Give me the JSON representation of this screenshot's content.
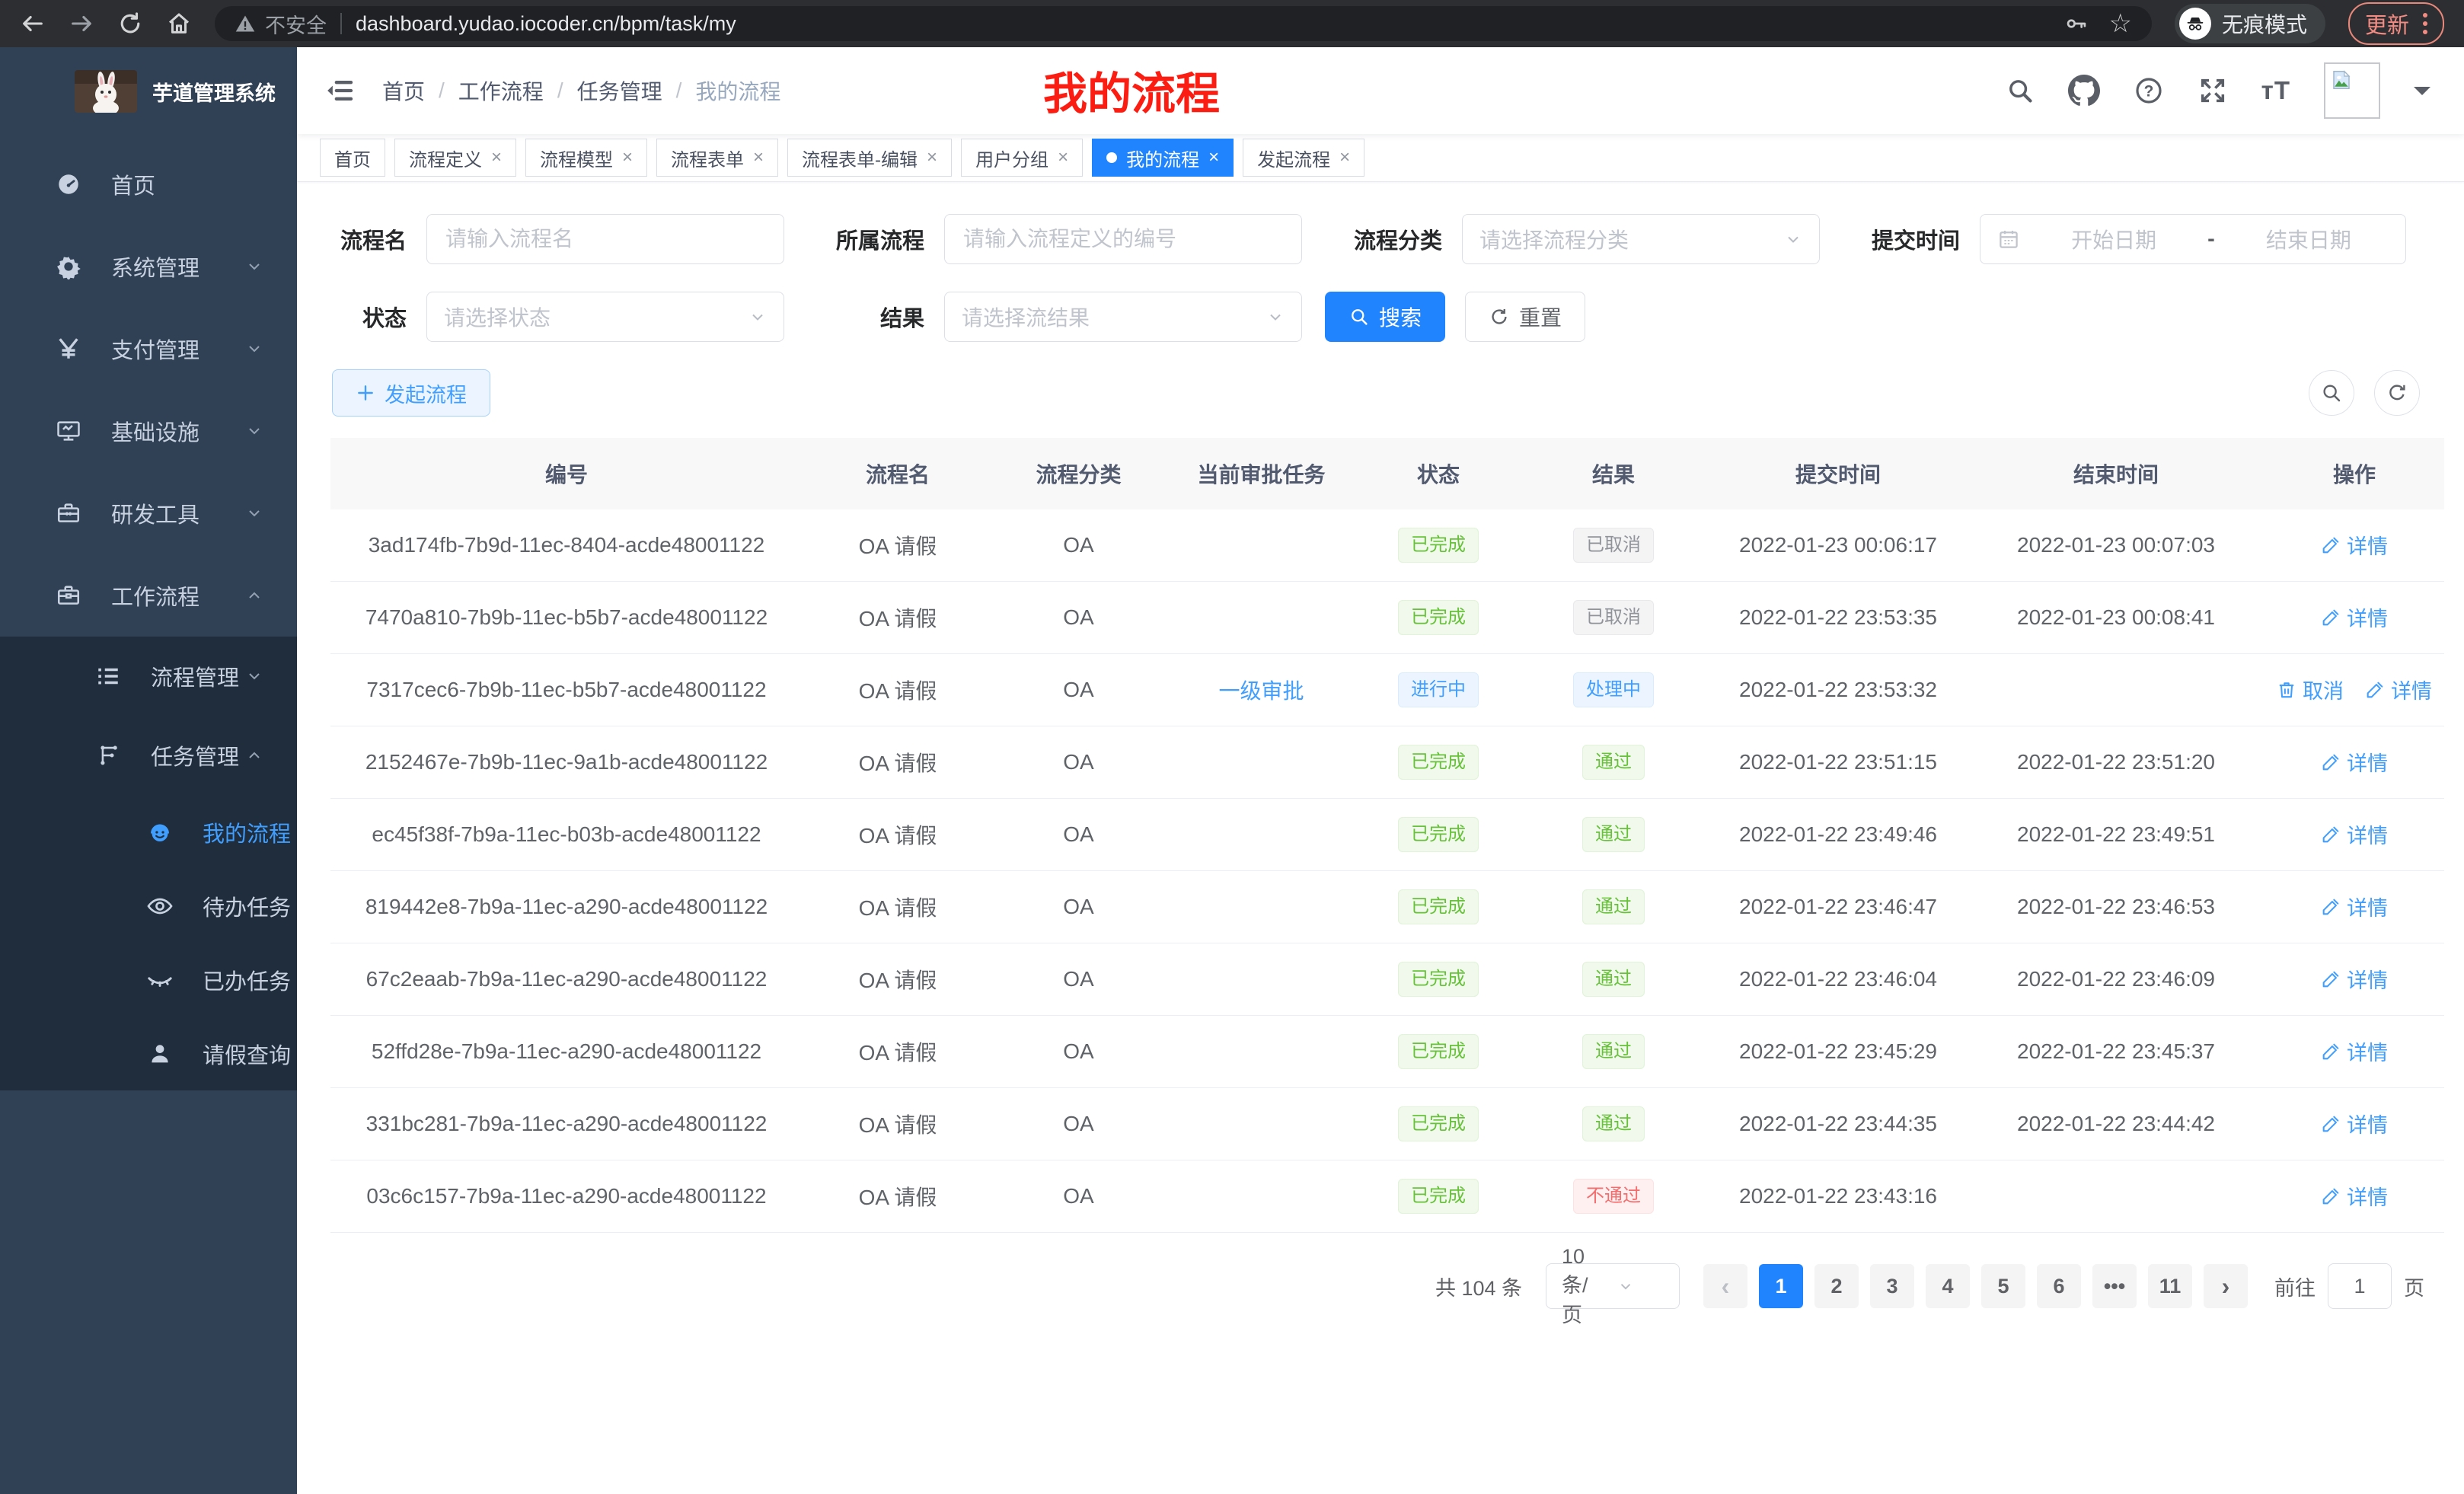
{
  "colors": {
    "primary": "#2084ff",
    "link": "#409eff",
    "success": "#67c23a",
    "info": "#909399",
    "danger": "#f56c6c",
    "annotation": "#fb1d12",
    "sidebar_bg": "#304156",
    "submenu_bg": "#1f2d3d"
  },
  "browser": {
    "security": "不安全",
    "url": "dashboard.yudao.iocoder.cn/bpm/task/my",
    "incognito": "无痕模式",
    "update": "更新"
  },
  "sidebar": {
    "title": "芋道管理系统",
    "items": [
      {
        "label": "首页",
        "icon": "dashboard",
        "level": 1
      },
      {
        "label": "系统管理",
        "icon": "gear",
        "level": 1,
        "chevron": "down"
      },
      {
        "label": "支付管理",
        "icon": "yen",
        "level": 1,
        "chevron": "down"
      },
      {
        "label": "基础设施",
        "icon": "monitor",
        "level": 1,
        "chevron": "down"
      },
      {
        "label": "研发工具",
        "icon": "toolbox",
        "level": 1,
        "chevron": "down"
      },
      {
        "label": "工作流程",
        "icon": "briefcase",
        "level": 1,
        "chevron": "up"
      },
      {
        "label": "流程管理",
        "icon": "list",
        "level": 2,
        "chevron": "down"
      },
      {
        "label": "任务管理",
        "icon": "flow",
        "level": 2,
        "chevron": "up"
      },
      {
        "label": "我的流程",
        "icon": "smiley",
        "level": 3,
        "active": true
      },
      {
        "label": "待办任务",
        "icon": "eye",
        "level": 3
      },
      {
        "label": "已办任务",
        "icon": "eye-off",
        "level": 3
      },
      {
        "label": "请假查询",
        "icon": "user",
        "level": 3
      }
    ]
  },
  "navbar": {
    "breadcrumb": [
      "首页",
      "工作流程",
      "任务管理",
      "我的流程"
    ],
    "annotation": "我的流程"
  },
  "tabs": [
    {
      "label": "首页",
      "closable": false,
      "active": false
    },
    {
      "label": "流程定义",
      "closable": true,
      "active": false
    },
    {
      "label": "流程模型",
      "closable": true,
      "active": false
    },
    {
      "label": "流程表单",
      "closable": true,
      "active": false
    },
    {
      "label": "流程表单-编辑",
      "closable": true,
      "active": false
    },
    {
      "label": "用户分组",
      "closable": true,
      "active": false
    },
    {
      "label": "我的流程",
      "closable": true,
      "active": true
    },
    {
      "label": "发起流程",
      "closable": true,
      "active": false
    }
  ],
  "filters": {
    "name": {
      "label": "流程名",
      "placeholder": "请输入流程名"
    },
    "definition": {
      "label": "所属流程",
      "placeholder": "请输入流程定义的编号"
    },
    "category": {
      "label": "流程分类",
      "placeholder": "请选择流程分类"
    },
    "time": {
      "label": "提交时间",
      "start": "开始日期",
      "separator": "-",
      "end": "结束日期"
    },
    "status": {
      "label": "状态",
      "placeholder": "请选择状态"
    },
    "result": {
      "label": "结果",
      "placeholder": "请选择流结果"
    },
    "search": "搜索",
    "reset": "重置"
  },
  "toolbar": {
    "create": "发起流程"
  },
  "table": {
    "headers": [
      "编号",
      "流程名",
      "流程分类",
      "当前审批任务",
      "状态",
      "结果",
      "提交时间",
      "结束时间",
      "操作"
    ],
    "op_labels": {
      "detail": "详情",
      "cancel": "取消"
    },
    "rows": [
      {
        "id": "3ad174fb-7b9d-11ec-8404-acde48001122",
        "name": "OA 请假",
        "category": "OA",
        "task": "",
        "status": [
          "已完成",
          "success"
        ],
        "result": [
          "已取消",
          "info"
        ],
        "submit": "2022-01-23 00:06:17",
        "end": "2022-01-23 00:07:03",
        "ops": [
          "detail"
        ]
      },
      {
        "id": "7470a810-7b9b-11ec-b5b7-acde48001122",
        "name": "OA 请假",
        "category": "OA",
        "task": "",
        "status": [
          "已完成",
          "success"
        ],
        "result": [
          "已取消",
          "info"
        ],
        "submit": "2022-01-22 23:53:35",
        "end": "2022-01-23 00:08:41",
        "ops": [
          "detail"
        ]
      },
      {
        "id": "7317cec6-7b9b-11ec-b5b7-acde48001122",
        "name": "OA 请假",
        "category": "OA",
        "task": "一级审批",
        "status": [
          "进行中",
          "primary"
        ],
        "result": [
          "处理中",
          "primary"
        ],
        "submit": "2022-01-22 23:53:32",
        "end": "",
        "ops": [
          "cancel",
          "detail"
        ]
      },
      {
        "id": "2152467e-7b9b-11ec-9a1b-acde48001122",
        "name": "OA 请假",
        "category": "OA",
        "task": "",
        "status": [
          "已完成",
          "success"
        ],
        "result": [
          "通过",
          "success"
        ],
        "submit": "2022-01-22 23:51:15",
        "end": "2022-01-22 23:51:20",
        "ops": [
          "detail"
        ]
      },
      {
        "id": "ec45f38f-7b9a-11ec-b03b-acde48001122",
        "name": "OA 请假",
        "category": "OA",
        "task": "",
        "status": [
          "已完成",
          "success"
        ],
        "result": [
          "通过",
          "success"
        ],
        "submit": "2022-01-22 23:49:46",
        "end": "2022-01-22 23:49:51",
        "ops": [
          "detail"
        ]
      },
      {
        "id": "819442e8-7b9a-11ec-a290-acde48001122",
        "name": "OA 请假",
        "category": "OA",
        "task": "",
        "status": [
          "已完成",
          "success"
        ],
        "result": [
          "通过",
          "success"
        ],
        "submit": "2022-01-22 23:46:47",
        "end": "2022-01-22 23:46:53",
        "ops": [
          "detail"
        ]
      },
      {
        "id": "67c2eaab-7b9a-11ec-a290-acde48001122",
        "name": "OA 请假",
        "category": "OA",
        "task": "",
        "status": [
          "已完成",
          "success"
        ],
        "result": [
          "通过",
          "success"
        ],
        "submit": "2022-01-22 23:46:04",
        "end": "2022-01-22 23:46:09",
        "ops": [
          "detail"
        ]
      },
      {
        "id": "52ffd28e-7b9a-11ec-a290-acde48001122",
        "name": "OA 请假",
        "category": "OA",
        "task": "",
        "status": [
          "已完成",
          "success"
        ],
        "result": [
          "通过",
          "success"
        ],
        "submit": "2022-01-22 23:45:29",
        "end": "2022-01-22 23:45:37",
        "ops": [
          "detail"
        ]
      },
      {
        "id": "331bc281-7b9a-11ec-a290-acde48001122",
        "name": "OA 请假",
        "category": "OA",
        "task": "",
        "status": [
          "已完成",
          "success"
        ],
        "result": [
          "通过",
          "success"
        ],
        "submit": "2022-01-22 23:44:35",
        "end": "2022-01-22 23:44:42",
        "ops": [
          "detail"
        ]
      },
      {
        "id": "03c6c157-7b9a-11ec-a290-acde48001122",
        "name": "OA 请假",
        "category": "OA",
        "task": "",
        "status": [
          "已完成",
          "success"
        ],
        "result": [
          "不通过",
          "danger"
        ],
        "submit": "2022-01-22 23:43:16",
        "end": "",
        "ops": [
          "detail"
        ]
      }
    ]
  },
  "pagination": {
    "total": "共 104 条",
    "page_size": "10条/页",
    "prev": "‹",
    "next": "›",
    "pages": [
      "1",
      "2",
      "3",
      "4",
      "5",
      "6",
      "•••",
      "11"
    ],
    "active": "1",
    "goto": "前往",
    "goto_value": "1",
    "unit": "页"
  }
}
